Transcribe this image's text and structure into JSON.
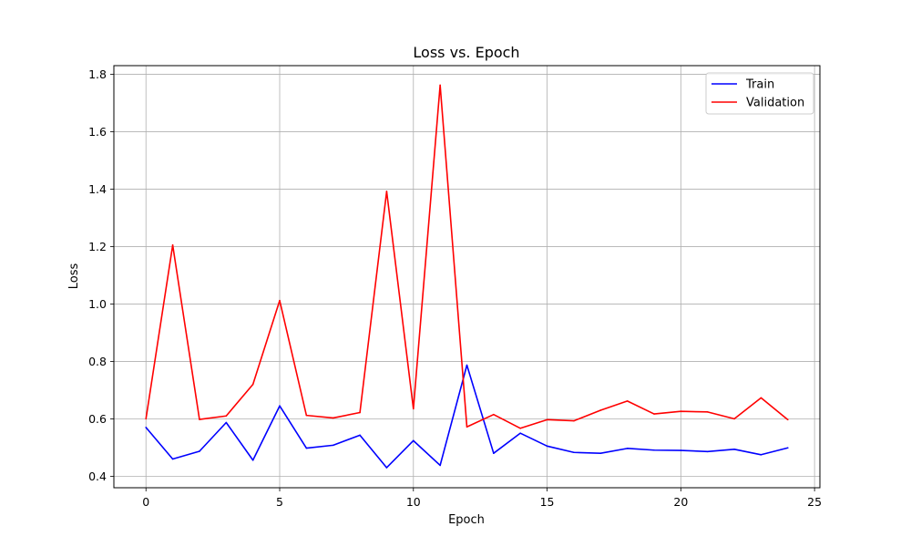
{
  "chart_data": {
    "type": "line",
    "title": "Loss vs. Epoch",
    "xlabel": "Epoch",
    "ylabel": "Loss",
    "xlim": [
      -1.2,
      25.2
    ],
    "ylim": [
      0.36,
      1.83
    ],
    "xticks": [
      0,
      5,
      10,
      15,
      20,
      25
    ],
    "yticks": [
      0.4,
      0.6,
      0.8,
      1.0,
      1.2,
      1.4,
      1.6,
      1.8
    ],
    "grid": true,
    "legend_position": "top-right",
    "x": [
      0,
      1,
      2,
      3,
      4,
      5,
      6,
      7,
      8,
      9,
      10,
      11,
      12,
      13,
      14,
      15,
      16,
      17,
      18,
      19,
      20,
      21,
      22,
      23,
      24
    ],
    "series": [
      {
        "name": "Train",
        "color": "#0000ff",
        "values": [
          0.57,
          0.46,
          0.487,
          0.587,
          0.456,
          0.645,
          0.498,
          0.508,
          0.543,
          0.43,
          0.524,
          0.438,
          0.787,
          0.48,
          0.55,
          0.505,
          0.483,
          0.48,
          0.497,
          0.491,
          0.49,
          0.486,
          0.494,
          0.475,
          0.499
        ]
      },
      {
        "name": "Validation",
        "color": "#ff0000",
        "values": [
          0.6,
          1.205,
          0.598,
          0.61,
          0.72,
          1.012,
          0.612,
          0.603,
          0.622,
          1.392,
          0.635,
          1.762,
          0.572,
          0.615,
          0.567,
          0.597,
          0.593,
          0.63,
          0.662,
          0.617,
          0.626,
          0.624,
          0.6,
          0.673,
          0.597
        ]
      }
    ]
  }
}
